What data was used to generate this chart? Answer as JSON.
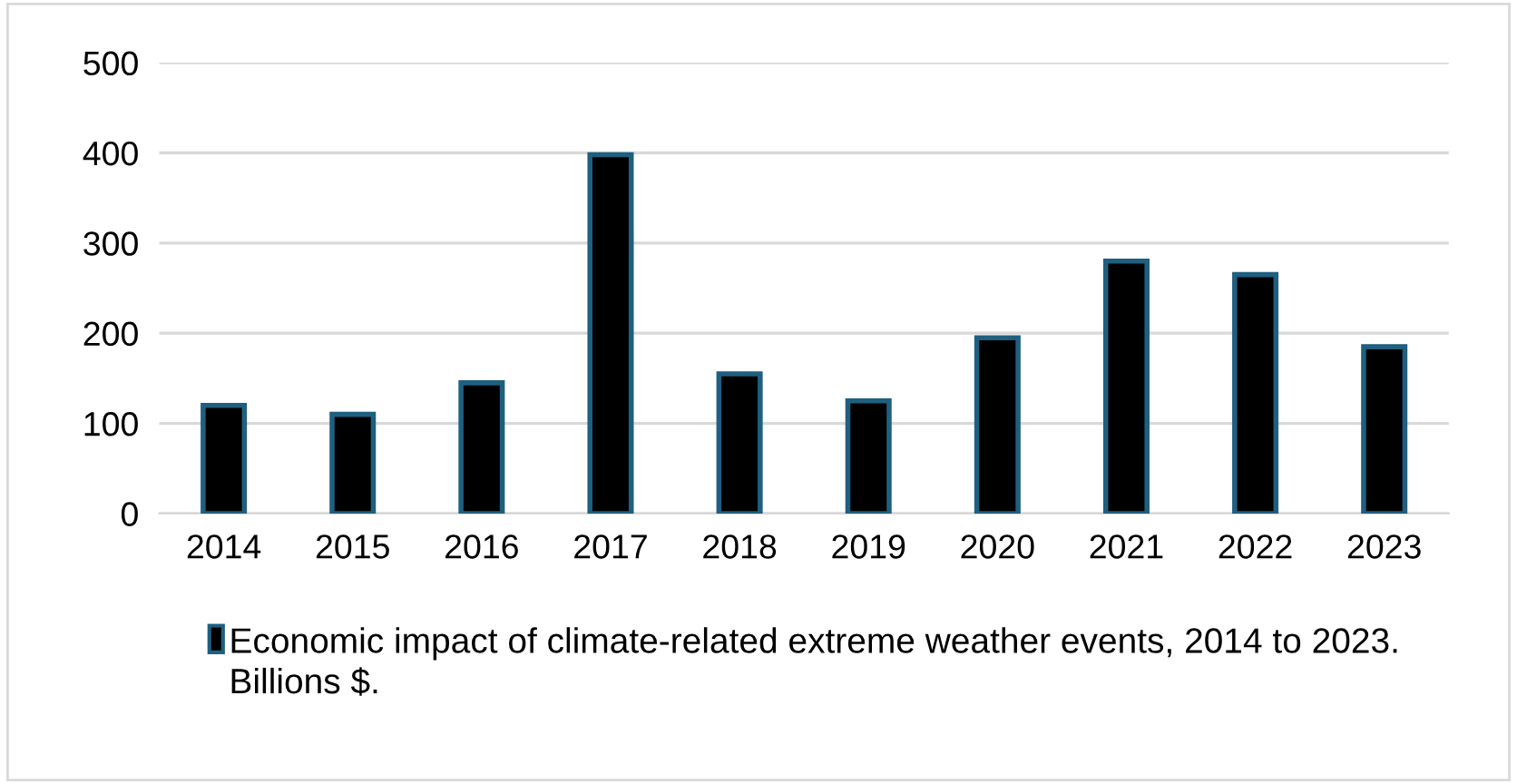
{
  "chart_data": {
    "type": "bar",
    "categories": [
      "2014",
      "2015",
      "2016",
      "2017",
      "2018",
      "2019",
      "2020",
      "2021",
      "2022",
      "2023"
    ],
    "series": [
      {
        "name": "Economic impact of climate-related extreme weather events, 2014 to 2023. Billions $.",
        "color": "#000000",
        "values": [
          120,
          110,
          145,
          398,
          155,
          125,
          195,
          280,
          265,
          185
        ]
      }
    ],
    "ylim": [
      0,
      500
    ],
    "yticks": [
      0,
      100,
      200,
      300,
      400,
      500
    ],
    "grid": "y",
    "legend": "bottom"
  }
}
